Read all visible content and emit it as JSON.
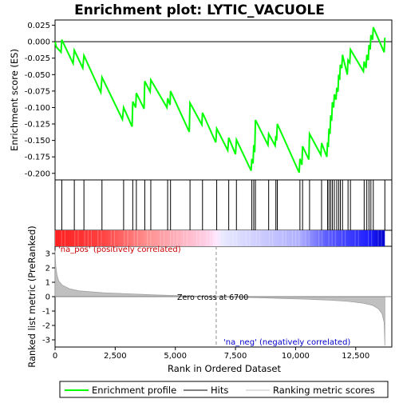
{
  "chart_data": {
    "type": "line",
    "title": "Enrichment plot: LYTIC_VACUOLE",
    "xlabel": "Rank in Ordered Dataset",
    "ylabel_top": "Enrichment score (ES)",
    "ylabel_bottom": "Ranked list metric (PreRanked)",
    "xlim": [
      0,
      14000
    ],
    "ylim_top": [
      -0.21,
      0.033
    ],
    "ylim_bottom": [
      -3.5,
      3.5
    ],
    "x_ticks": [
      0,
      2500,
      5000,
      7500,
      10000,
      12500
    ],
    "x_tick_labels": [
      "0",
      "2,500",
      "5,000",
      "7,500",
      "10,000",
      "12,500"
    ],
    "y_ticks_top": [
      0.025,
      0.0,
      -0.025,
      -0.05,
      -0.075,
      -0.1,
      -0.125,
      -0.15,
      -0.175,
      -0.2
    ],
    "y_tick_labels_top": [
      "0.025",
      "0.000",
      "-0.025",
      "-0.050",
      "-0.075",
      "-0.100",
      "-0.125",
      "-0.150",
      "-0.175",
      "-0.200"
    ],
    "y_ticks_bottom": [
      3,
      2,
      1,
      0,
      -1,
      -2,
      -3
    ],
    "y_tick_labels_bottom": [
      "3",
      "2",
      "1",
      "0",
      "-1",
      "-2",
      "-3"
    ],
    "enrichment_profile": {
      "name": "Enrichment profile",
      "color": "#00ff00",
      "points": [
        [
          0,
          0.0
        ],
        [
          50,
          -0.008
        ],
        [
          250,
          -0.016
        ],
        [
          280,
          0.003
        ],
        [
          750,
          -0.033
        ],
        [
          800,
          -0.013
        ],
        [
          1150,
          -0.04
        ],
        [
          1200,
          -0.021
        ],
        [
          1900,
          -0.077
        ],
        [
          1950,
          -0.054
        ],
        [
          2800,
          -0.118
        ],
        [
          2850,
          -0.1
        ],
        [
          3200,
          -0.129
        ],
        [
          3230,
          -0.091
        ],
        [
          3350,
          -0.1
        ],
        [
          3380,
          -0.078
        ],
        [
          3700,
          -0.102
        ],
        [
          3730,
          -0.06
        ],
        [
          3950,
          -0.076
        ],
        [
          3980,
          -0.058
        ],
        [
          4650,
          -0.1
        ],
        [
          4680,
          -0.086
        ],
        [
          4780,
          -0.096
        ],
        [
          4800,
          -0.075
        ],
        [
          5580,
          -0.137
        ],
        [
          5610,
          -0.093
        ],
        [
          6100,
          -0.126
        ],
        [
          6130,
          -0.108
        ],
        [
          6680,
          -0.153
        ],
        [
          6720,
          -0.132
        ],
        [
          7180,
          -0.165
        ],
        [
          7220,
          -0.146
        ],
        [
          7500,
          -0.171
        ],
        [
          7540,
          -0.149
        ],
        [
          8150,
          -0.196
        ],
        [
          8180,
          -0.178
        ],
        [
          8230,
          -0.185
        ],
        [
          8260,
          -0.157
        ],
        [
          8300,
          -0.168
        ],
        [
          8330,
          -0.119
        ],
        [
          8850,
          -0.157
        ],
        [
          8880,
          -0.14
        ],
        [
          9150,
          -0.158
        ],
        [
          9180,
          -0.143
        ],
        [
          9210,
          -0.15
        ],
        [
          9240,
          -0.125
        ],
        [
          10150,
          -0.199
        ],
        [
          10180,
          -0.178
        ],
        [
          10260,
          -0.187
        ],
        [
          10290,
          -0.159
        ],
        [
          10550,
          -0.179
        ],
        [
          10580,
          -0.14
        ],
        [
          11050,
          -0.172
        ],
        [
          11080,
          -0.154
        ],
        [
          11300,
          -0.175
        ],
        [
          11330,
          -0.153
        ],
        [
          11360,
          -0.16
        ],
        [
          11390,
          -0.132
        ],
        [
          11430,
          -0.14
        ],
        [
          11460,
          -0.112
        ],
        [
          11500,
          -0.12
        ],
        [
          11530,
          -0.092
        ],
        [
          11580,
          -0.1
        ],
        [
          11610,
          -0.08
        ],
        [
          11680,
          -0.088
        ],
        [
          11710,
          -0.07
        ],
        [
          11760,
          -0.076
        ],
        [
          11790,
          -0.05
        ],
        [
          11830,
          -0.058
        ],
        [
          11860,
          -0.035
        ],
        [
          11920,
          -0.04
        ],
        [
          11950,
          -0.02
        ],
        [
          12150,
          -0.05
        ],
        [
          12180,
          -0.028
        ],
        [
          12250,
          -0.032
        ],
        [
          12280,
          -0.012
        ],
        [
          12820,
          -0.045
        ],
        [
          12850,
          -0.03
        ],
        [
          12930,
          -0.04
        ],
        [
          12960,
          -0.02
        ],
        [
          13020,
          -0.028
        ],
        [
          13050,
          -0.005
        ],
        [
          13100,
          -0.012
        ],
        [
          13130,
          0.01
        ],
        [
          13200,
          0.003
        ],
        [
          13230,
          0.022
        ],
        [
          13680,
          -0.016
        ],
        [
          13710,
          0.006
        ]
      ]
    },
    "hits": [
      280,
      800,
      1200,
      1950,
      2850,
      3230,
      3380,
      3730,
      3980,
      4680,
      4800,
      5610,
      6130,
      6720,
      7220,
      7540,
      8180,
      8260,
      8330,
      8880,
      9180,
      9240,
      10180,
      10290,
      10580,
      11080,
      11330,
      11390,
      11460,
      11530,
      11610,
      11710,
      11790,
      11860,
      11950,
      12180,
      12280,
      12850,
      12960,
      13050,
      13130,
      13230,
      13710
    ],
    "hits_legend": "Hits",
    "ranking_metric": {
      "name": "Ranking metric scores",
      "color": "#c0c0c0",
      "points": [
        [
          0,
          3.2
        ],
        [
          30,
          2.1
        ],
        [
          80,
          1.5
        ],
        [
          150,
          1.1
        ],
        [
          300,
          0.8
        ],
        [
          600,
          0.55
        ],
        [
          1000,
          0.4
        ],
        [
          2000,
          0.27
        ],
        [
          3000,
          0.2
        ],
        [
          4000,
          0.13
        ],
        [
          5000,
          0.08
        ],
        [
          6000,
          0.03
        ],
        [
          6700,
          0.0
        ],
        [
          7500,
          -0.04
        ],
        [
          8500,
          -0.08
        ],
        [
          9500,
          -0.13
        ],
        [
          10500,
          -0.18
        ],
        [
          11500,
          -0.25
        ],
        [
          12200,
          -0.33
        ],
        [
          12800,
          -0.45
        ],
        [
          13200,
          -0.6
        ],
        [
          13450,
          -0.85
        ],
        [
          13600,
          -1.2
        ],
        [
          13680,
          -1.8
        ],
        [
          13710,
          -3.4
        ]
      ]
    },
    "zero_cross_text": "Zero cross at 6700",
    "pos_label": "'na_pos' (positively correlated)",
    "neg_label": "'na_neg' (negatively correlated)",
    "zero_cross": 6700,
    "max_rank": 13710,
    "heatmap_colors": {
      "pos": "#ff0000",
      "neutral": "#ffe8ff",
      "neg": "#0000ff"
    },
    "legend_placement": "bottom"
  }
}
